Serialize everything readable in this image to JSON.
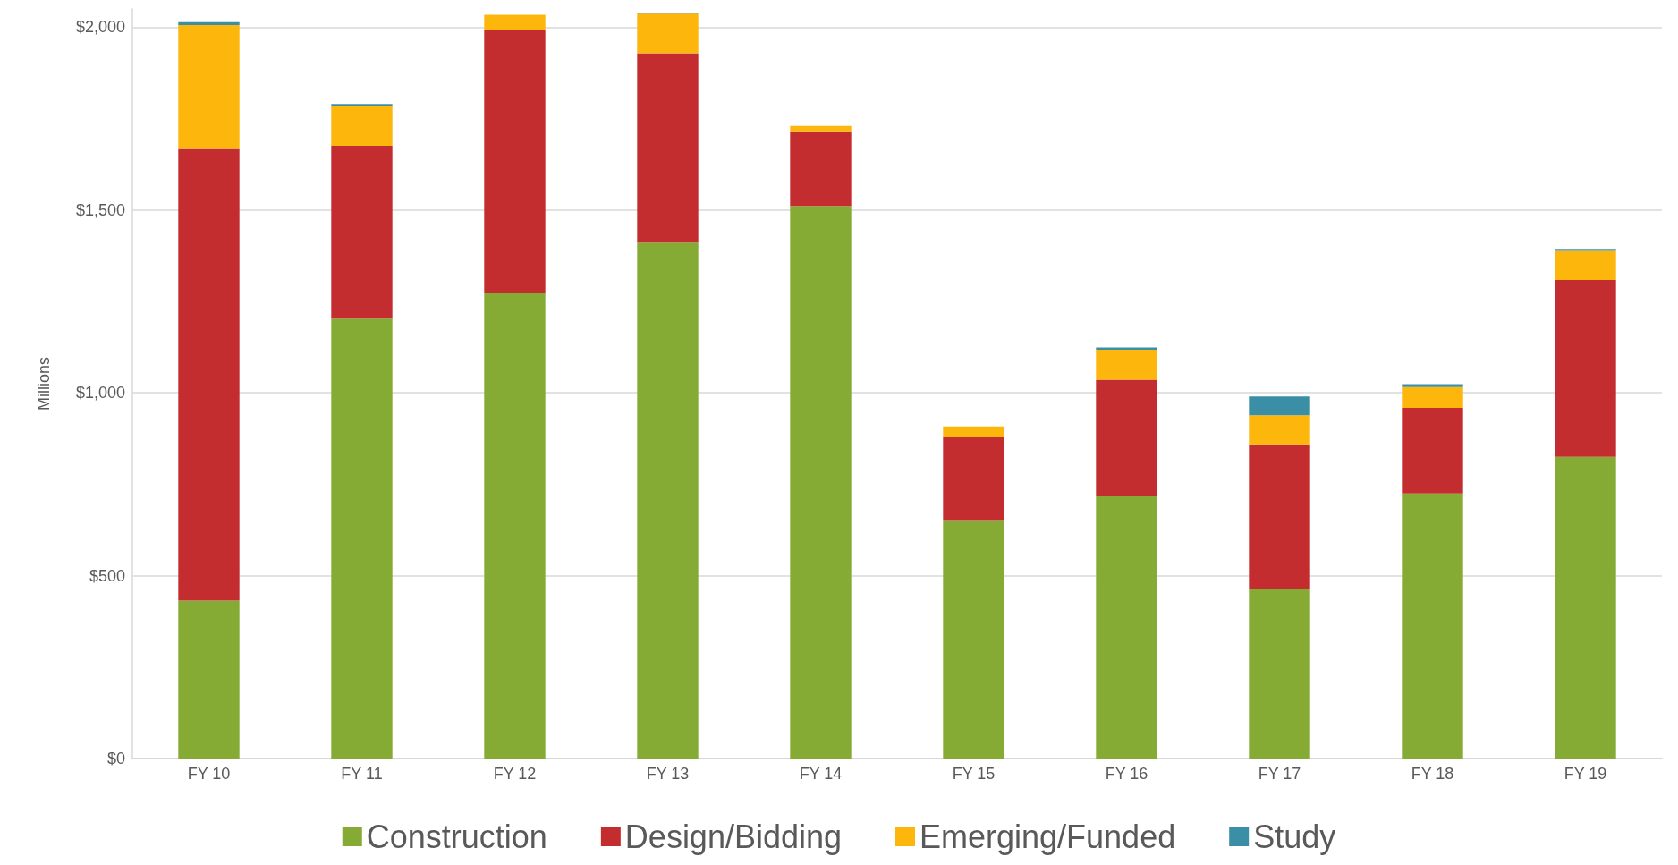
{
  "chart_data": {
    "type": "bar",
    "ylabel": "Millions",
    "stacked": true,
    "grid": "y",
    "legend": "bottom",
    "categories": [
      "FY 10",
      "FY 11",
      "FY 12",
      "FY 13",
      "FY 14",
      "FY 15",
      "FY 16",
      "FY 17",
      "FY 18",
      "FY 19"
    ],
    "series": [
      {
        "name": "Construction",
        "color": "#86ab34",
        "values": [
          432,
          1203,
          1272,
          1411,
          1511,
          652,
          717,
          464,
          725,
          825
        ]
      },
      {
        "name": "Design/Bidding",
        "color": "#c42d2f",
        "values": [
          1235,
          473,
          722,
          518,
          202,
          227,
          319,
          395,
          234,
          484
        ]
      },
      {
        "name": "Emerging/Funded",
        "color": "#fdb60c",
        "values": [
          339,
          108,
          40,
          108,
          17,
          29,
          82,
          80,
          57,
          79
        ]
      },
      {
        "name": "Study",
        "color": "#3a8fa7",
        "values": [
          8,
          6,
          null,
          3,
          null,
          null,
          6,
          51,
          8,
          6
        ]
      }
    ],
    "ylim": [
      0,
      2050
    ],
    "yticks": [
      {
        "value": 0,
        "label": "$0"
      },
      {
        "value": 500,
        "label": "$500"
      },
      {
        "value": 1000,
        "label": "$1,000"
      },
      {
        "value": 1500,
        "label": "$1,500"
      },
      {
        "value": 2000,
        "label": "$2,000"
      }
    ]
  }
}
